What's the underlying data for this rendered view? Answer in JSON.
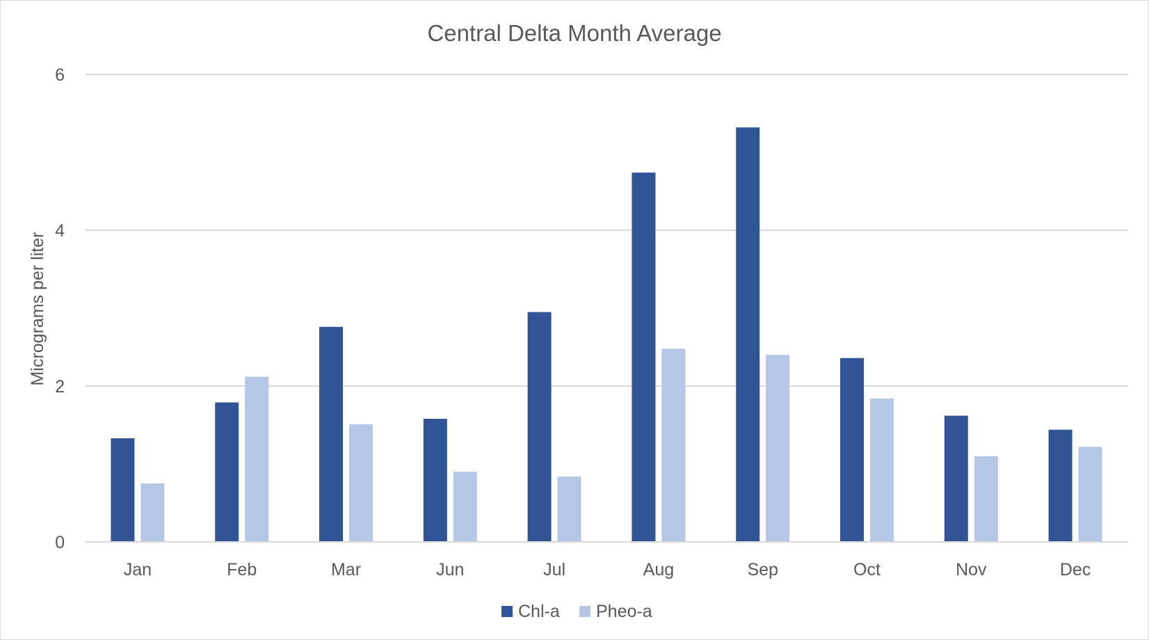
{
  "chart_data": {
    "type": "bar",
    "title": "Central Delta Month Average",
    "xlabel": "",
    "ylabel": "Micrograms per liter",
    "categories": [
      "Jan",
      "Feb",
      "Mar",
      "Jun",
      "Jul",
      "Aug",
      "Sep",
      "Oct",
      "Nov",
      "Dec"
    ],
    "series": [
      {
        "name": "Chl-a",
        "color": "#2f5597",
        "values": [
          1.33,
          1.79,
          2.76,
          1.58,
          2.95,
          4.74,
          5.32,
          2.36,
          1.62,
          1.44
        ]
      },
      {
        "name": "Pheo-a",
        "color": "#b4c7e7",
        "values": [
          0.75,
          2.12,
          1.51,
          0.9,
          0.84,
          2.48,
          2.4,
          1.84,
          1.1,
          1.22
        ]
      }
    ],
    "ylim": [
      0,
      6
    ],
    "yticks": [
      "0",
      "2",
      "4",
      "6"
    ],
    "grid": true,
    "legend_position": "bottom",
    "colors": {
      "gridline": "#d9d9d9",
      "text": "#595959",
      "border": "#d9d9d9"
    }
  }
}
